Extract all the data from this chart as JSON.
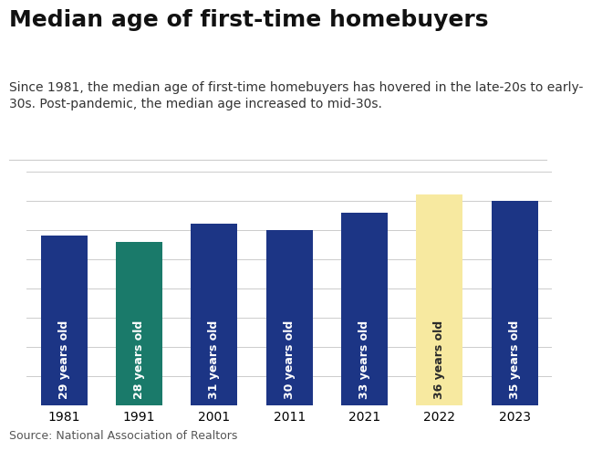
{
  "title": "Median age of first-time homebuyers",
  "subtitle": "Since 1981, the median age of first-time homebuyers has hovered in the late-20s to early-\n30s. Post-pandemic, the median age increased to mid-30s.",
  "source": "Source: National Association of Realtors",
  "categories": [
    "1981",
    "1991",
    "2001",
    "2011",
    "2021",
    "2022",
    "2023"
  ],
  "values": [
    29,
    28,
    31,
    30,
    33,
    36,
    35
  ],
  "labels": [
    "29 years old",
    "28 years old",
    "31 years old",
    "30 years old",
    "33 years old",
    "36 years old",
    "35 years old"
  ],
  "bar_colors": [
    "#1c3585",
    "#1a7a6a",
    "#1c3585",
    "#1c3585",
    "#1c3585",
    "#f7e9a0",
    "#1c3585"
  ],
  "label_colors": [
    "#ffffff",
    "#ffffff",
    "#ffffff",
    "#ffffff",
    "#ffffff",
    "#2a2a2a",
    "#ffffff"
  ],
  "background_color": "#ffffff",
  "ylim": [
    0,
    40
  ],
  "bar_width": 0.62,
  "title_fontsize": 18,
  "subtitle_fontsize": 10,
  "source_fontsize": 9,
  "label_fontsize": 9,
  "tick_fontsize": 10,
  "grid_color": "#cccccc",
  "grid_yticks": [
    0,
    5,
    10,
    15,
    20,
    25,
    30,
    35,
    40
  ]
}
